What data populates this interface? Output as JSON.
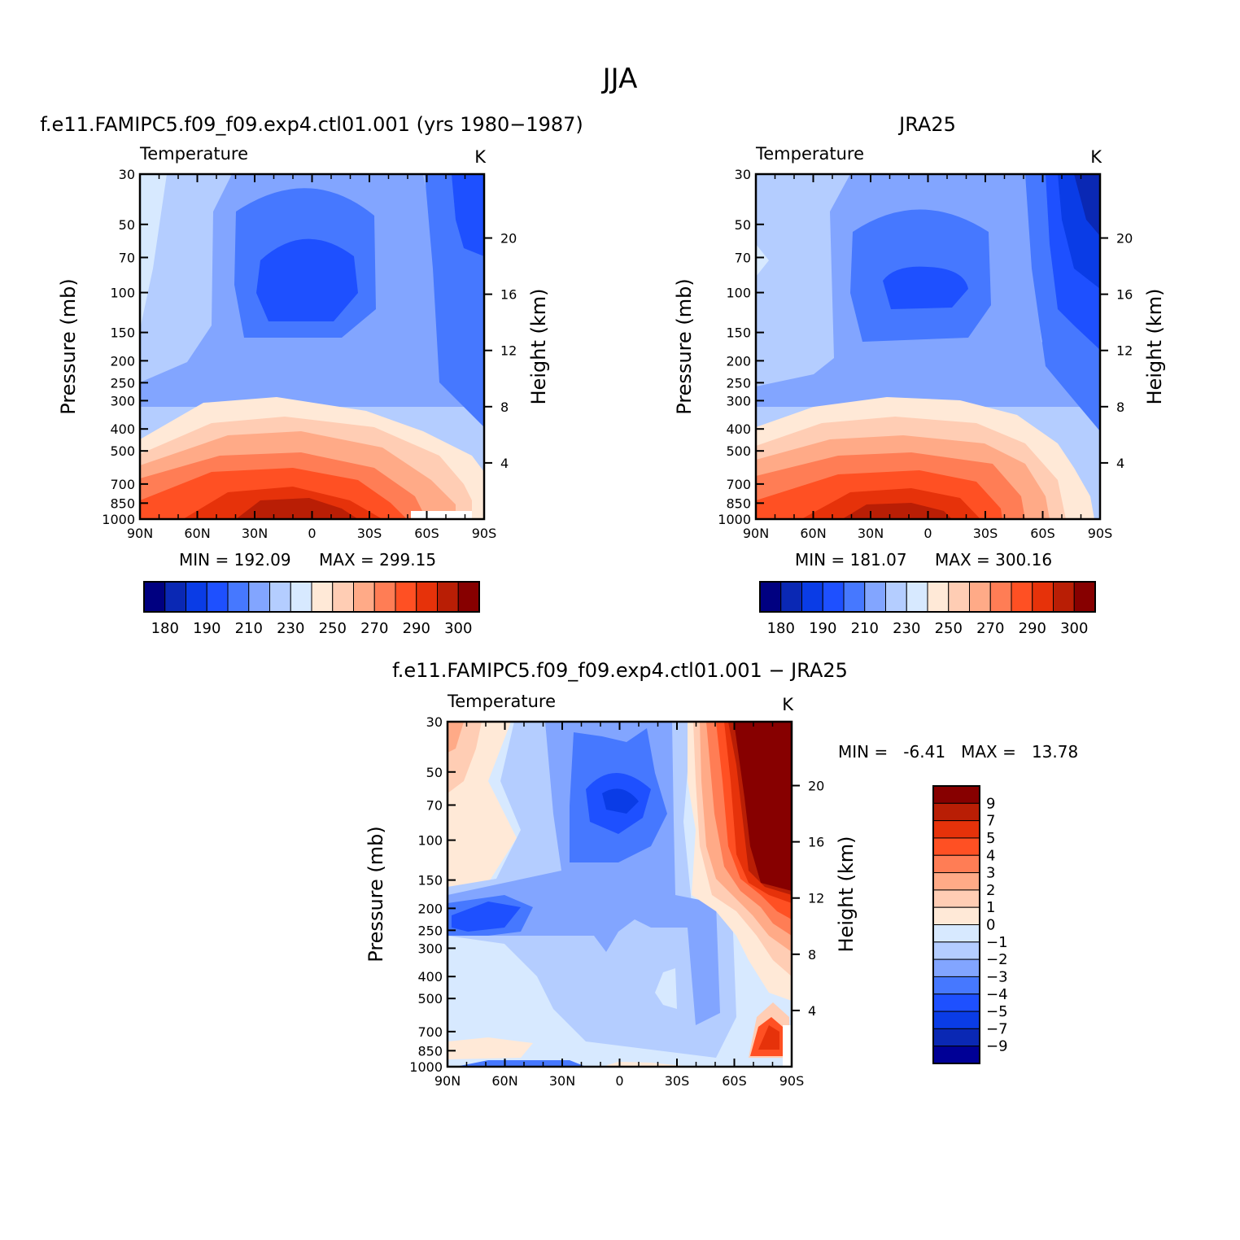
{
  "figure": {
    "title": "JJA",
    "diff_stats": "MIN =   -6.41   MAX =   13.78"
  },
  "colors": {
    "abs": [
      "#000080",
      "#0a28b4",
      "#0a3ce6",
      "#1e50ff",
      "#4678ff",
      "#82a5ff",
      "#b4cdff",
      "#d7e9ff",
      "#ffe9d7",
      "#ffcdb4",
      "#ffaa87",
      "#ff7d55",
      "#ff5023",
      "#e6320a",
      "#b91e05",
      "#870000"
    ],
    "diff": [
      "#000096",
      "#0a28b4",
      "#0a3ce6",
      "#1e50ff",
      "#4678ff",
      "#82a5ff",
      "#b4cdff",
      "#d7e9ff",
      "#ffe9d7",
      "#ffcdb4",
      "#ffaa87",
      "#ff7d55",
      "#ff5023",
      "#e6320a",
      "#b91e05",
      "#870000"
    ]
  },
  "chart_data": [
    {
      "type": "heatmap",
      "title": "f.e11.FAMIPC5.f09_f09.exp4.ctl01.001 (yrs 1980−1987)",
      "variable": "Temperature",
      "units": "K",
      "xlabel": "",
      "ylabel": "Pressure (mb)",
      "ylabel_right": "Height (km)",
      "x_ticks": [
        "90N",
        "60N",
        "30N",
        "0",
        "30S",
        "60S",
        "90S"
      ],
      "y_ticks": [
        "30",
        "50",
        "70",
        "100",
        "150",
        "200",
        "250",
        "300",
        "400",
        "500",
        "700",
        "850",
        "1000"
      ],
      "y_ticks_right": [
        "4",
        "8",
        "12",
        "16",
        "20"
      ],
      "min_label": "MIN =  192.09",
      "max_label": "MAX =  299.15",
      "min": 192.09,
      "max": 299.15,
      "colorbar_labels": [
        "180",
        "190",
        "210",
        "230",
        "250",
        "270",
        "290",
        "300"
      ]
    },
    {
      "type": "heatmap",
      "title": "JRA25",
      "variable": "Temperature",
      "units": "K",
      "xlabel": "",
      "ylabel": "Pressure (mb)",
      "ylabel_right": "Height (km)",
      "x_ticks": [
        "90N",
        "60N",
        "30N",
        "0",
        "30S",
        "60S",
        "90S"
      ],
      "y_ticks": [
        "30",
        "50",
        "70",
        "100",
        "150",
        "200",
        "250",
        "300",
        "400",
        "500",
        "700",
        "850",
        "1000"
      ],
      "y_ticks_right": [
        "4",
        "8",
        "12",
        "16",
        "20"
      ],
      "min_label": "MIN =  181.07",
      "max_label": "MAX =  300.16",
      "min": 181.07,
      "max": 300.16,
      "colorbar_labels": [
        "180",
        "190",
        "210",
        "230",
        "250",
        "270",
        "290",
        "300"
      ]
    },
    {
      "type": "heatmap",
      "title": "f.e11.FAMIPC5.f09_f09.exp4.ctl01.001 − JRA25",
      "variable": "Temperature",
      "units": "K",
      "xlabel": "",
      "ylabel": "Pressure (mb)",
      "ylabel_right": "Height (km)",
      "x_ticks": [
        "90N",
        "60N",
        "30N",
        "0",
        "30S",
        "60S",
        "90S"
      ],
      "y_ticks": [
        "30",
        "50",
        "70",
        "100",
        "150",
        "200",
        "250",
        "300",
        "400",
        "500",
        "700",
        "850",
        "1000"
      ],
      "y_ticks_right": [
        "4",
        "8",
        "12",
        "16",
        "20"
      ],
      "min": -6.41,
      "max": 13.78,
      "colorbar_labels": [
        "9",
        "7",
        "5",
        "4",
        "3",
        "2",
        "1",
        "0",
        "−1",
        "−2",
        "−3",
        "−4",
        "−5",
        "−7",
        "−9"
      ]
    }
  ]
}
